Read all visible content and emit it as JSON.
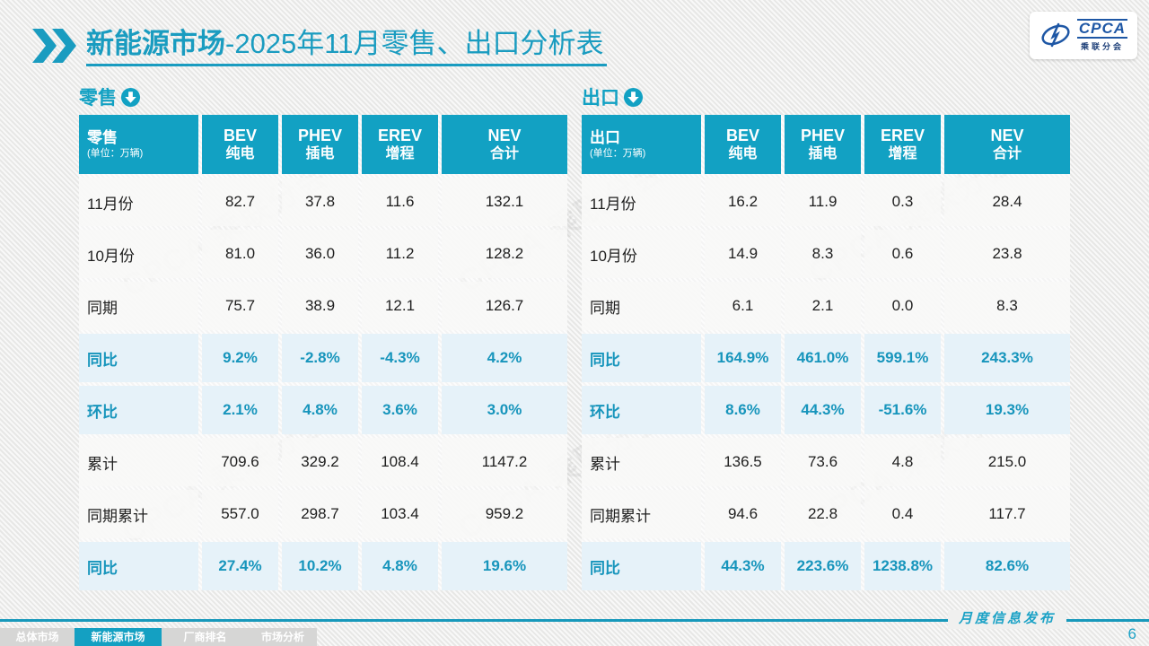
{
  "header": {
    "title_bold": "新能源市场",
    "title_rest": "-2025年11月零售、出口分析表",
    "logo": {
      "name": "CPCA",
      "subname": "乘联分会"
    }
  },
  "watermark": "CPCA 乘联分会",
  "tables": [
    {
      "section_label": "零售",
      "corner_title": "零售",
      "corner_unit": "(单位：万辆)",
      "columns": [
        {
          "en": "BEV",
          "cn": "纯电"
        },
        {
          "en": "PHEV",
          "cn": "插电"
        },
        {
          "en": "EREV",
          "cn": "增程"
        },
        {
          "en": "NEV",
          "cn": "合计"
        }
      ],
      "rows": [
        {
          "label": "11月份",
          "type": "normal",
          "values": [
            "82.7",
            "37.8",
            "11.6",
            "132.1"
          ]
        },
        {
          "label": "10月份",
          "type": "normal",
          "values": [
            "81.0",
            "36.0",
            "11.2",
            "128.2"
          ]
        },
        {
          "label": "同期",
          "type": "normal",
          "values": [
            "75.7",
            "38.9",
            "12.1",
            "126.7"
          ]
        },
        {
          "label": "同比",
          "type": "percent",
          "values": [
            "9.2%",
            "-2.8%",
            "-4.3%",
            "4.2%"
          ]
        },
        {
          "label": "环比",
          "type": "percent",
          "values": [
            "2.1%",
            "4.8%",
            "3.6%",
            "3.0%"
          ]
        },
        {
          "label": "累计",
          "type": "normal",
          "values": [
            "709.6",
            "329.2",
            "108.4",
            "1147.2"
          ]
        },
        {
          "label": "同期累计",
          "type": "normal",
          "values": [
            "557.0",
            "298.7",
            "103.4",
            "959.2"
          ]
        },
        {
          "label": "同比",
          "type": "percent",
          "values": [
            "27.4%",
            "10.2%",
            "4.8%",
            "19.6%"
          ]
        }
      ]
    },
    {
      "section_label": "出口",
      "corner_title": "出口",
      "corner_unit": "(单位：万辆)",
      "columns": [
        {
          "en": "BEV",
          "cn": "纯电"
        },
        {
          "en": "PHEV",
          "cn": "插电"
        },
        {
          "en": "EREV",
          "cn": "增程"
        },
        {
          "en": "NEV",
          "cn": "合计"
        }
      ],
      "rows": [
        {
          "label": "11月份",
          "type": "normal",
          "values": [
            "16.2",
            "11.9",
            "0.3",
            "28.4"
          ]
        },
        {
          "label": "10月份",
          "type": "normal",
          "values": [
            "14.9",
            "8.3",
            "0.6",
            "23.8"
          ]
        },
        {
          "label": "同期",
          "type": "normal",
          "values": [
            "6.1",
            "2.1",
            "0.0",
            "8.3"
          ]
        },
        {
          "label": "同比",
          "type": "percent",
          "values": [
            "164.9%",
            "461.0%",
            "599.1%",
            "243.3%"
          ]
        },
        {
          "label": "环比",
          "type": "percent",
          "values": [
            "8.6%",
            "44.3%",
            "-51.6%",
            "19.3%"
          ]
        },
        {
          "label": "累计",
          "type": "normal",
          "values": [
            "136.5",
            "73.6",
            "4.8",
            "215.0"
          ]
        },
        {
          "label": "同期累计",
          "type": "normal",
          "values": [
            "94.6",
            "22.8",
            "0.4",
            "117.7"
          ]
        },
        {
          "label": "同比",
          "type": "percent",
          "values": [
            "44.3%",
            "223.6%",
            "1238.8%",
            "82.6%"
          ]
        }
      ]
    }
  ],
  "footer": {
    "tabs": [
      {
        "label": "总体市场",
        "active": false
      },
      {
        "label": "新能源市场",
        "active": true
      },
      {
        "label": "厂商排名",
        "active": false
      },
      {
        "label": "市场分析",
        "active": false
      }
    ],
    "publication": "月度信息发布",
    "page": "6"
  },
  "colors": {
    "teal": "#12A1C3",
    "teal_text": "#1795BC",
    "percent_row_bg": "#E6F2F9",
    "tab_gray": "#D6D6D5",
    "logo_blue": "#1E57A5"
  },
  "chart_data": [
    {
      "type": "table",
      "title": "零售 (单位：万辆)",
      "columns": [
        "BEV 纯电",
        "PHEV 插电",
        "EREV 增程",
        "NEV 合计"
      ],
      "rows": {
        "11月份": [
          82.7,
          37.8,
          11.6,
          132.1
        ],
        "10月份": [
          81.0,
          36.0,
          11.2,
          128.2
        ],
        "同期": [
          75.7,
          38.9,
          12.1,
          126.7
        ],
        "同比": [
          "9.2%",
          "-2.8%",
          "-4.3%",
          "4.2%"
        ],
        "环比": [
          "2.1%",
          "4.8%",
          "3.6%",
          "3.0%"
        ],
        "累计": [
          709.6,
          329.2,
          108.4,
          1147.2
        ],
        "同期累计": [
          557.0,
          298.7,
          103.4,
          959.2
        ],
        "累计同比": [
          "27.4%",
          "10.2%",
          "4.8%",
          "19.6%"
        ]
      }
    },
    {
      "type": "table",
      "title": "出口 (单位：万辆)",
      "columns": [
        "BEV 纯电",
        "PHEV 插电",
        "EREV 增程",
        "NEV 合计"
      ],
      "rows": {
        "11月份": [
          16.2,
          11.9,
          0.3,
          28.4
        ],
        "10月份": [
          14.9,
          8.3,
          0.6,
          23.8
        ],
        "同期": [
          6.1,
          2.1,
          0.0,
          8.3
        ],
        "同比": [
          "164.9%",
          "461.0%",
          "599.1%",
          "243.3%"
        ],
        "环比": [
          "8.6%",
          "44.3%",
          "-51.6%",
          "19.3%"
        ],
        "累计": [
          136.5,
          73.6,
          4.8,
          215.0
        ],
        "同期累计": [
          94.6,
          22.8,
          0.4,
          117.7
        ],
        "累计同比": [
          "44.3%",
          "223.6%",
          "1238.8%",
          "82.6%"
        ]
      }
    }
  ]
}
